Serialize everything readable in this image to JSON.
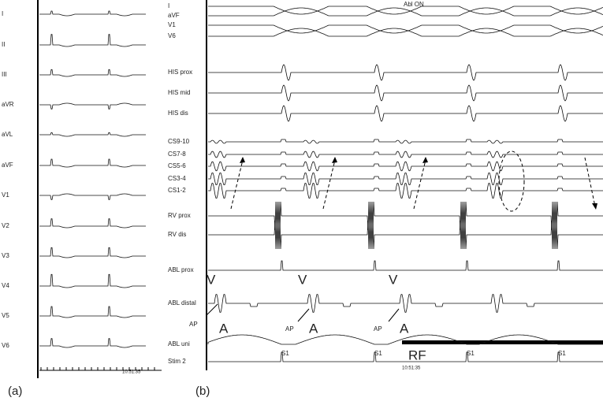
{
  "panel_a": {
    "leads": [
      "I",
      "II",
      "III",
      "aVR",
      "aVL",
      "aVF",
      "V1",
      "V2",
      "V3",
      "V4",
      "V5",
      "V6"
    ],
    "time": "10:51:35",
    "label": "(a)"
  },
  "panel_b": {
    "channels": [
      "I",
      "aVF",
      "V1",
      "V6",
      "HIS prox",
      "HIS mid",
      "HIS dis",
      "CS9-10",
      "CS7-8",
      "CS5-6",
      "CS3-4",
      "CS1-2",
      "RV prox",
      "RV dis",
      "ABL prox",
      "ABL distal",
      "ABL uni",
      "Stim 2"
    ],
    "annotation": "Abl ON",
    "time": "10:51:35",
    "label": "(b)",
    "markers": [
      "V",
      "A",
      "AP",
      "V",
      "A",
      "AP",
      "V",
      "A",
      "AP",
      "RF"
    ],
    "stim": [
      "S1",
      "S1",
      "S1",
      "S1"
    ]
  }
}
